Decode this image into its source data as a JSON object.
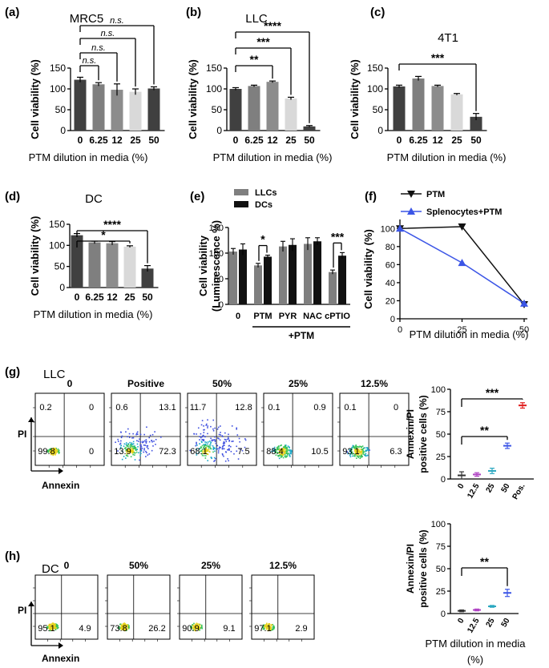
{
  "figure": {
    "colors": {
      "dark": "#404040",
      "mid": "#7f7f7f",
      "mid2": "#8c8c8c",
      "light": "#d9d9d9",
      "black": "#111111",
      "blue": "#3b55e6",
      "purple": "#b044c4",
      "teal": "#2aa7c0",
      "red": "#e01b1b"
    }
  },
  "chart_data": [
    {
      "id": "a",
      "panel_label": "(a)",
      "type": "bar",
      "title": "MRC5",
      "xlabel": "PTM dilution in media (%)",
      "ylabel": "Cell viability (%)",
      "categories": [
        "0",
        "6.25",
        "12",
        "25",
        "50"
      ],
      "values": [
        122,
        111,
        98,
        93,
        101
      ],
      "errors": [
        6,
        4,
        14,
        7,
        4
      ],
      "ylim": [
        0,
        150
      ],
      "yticks": [
        "0",
        "50",
        "100",
        "150"
      ],
      "significance": [
        {
          "from": 0,
          "to": 4,
          "label": "n.s."
        },
        {
          "from": 0,
          "to": 3,
          "label": "n.s."
        },
        {
          "from": 0,
          "to": 2,
          "label": "n.s."
        },
        {
          "from": 0,
          "to": 1,
          "label": "n.s."
        }
      ]
    },
    {
      "id": "b",
      "panel_label": "(b)",
      "type": "bar",
      "title": "LLC",
      "xlabel": "PTM dilution in media (%)",
      "ylabel": "Cell viability (%)",
      "categories": [
        "0",
        "6.25",
        "12",
        "25",
        "50"
      ],
      "values": [
        100,
        107,
        117,
        77,
        10
      ],
      "errors": [
        3,
        2,
        2,
        3,
        2
      ],
      "ylim": [
        0,
        150
      ],
      "yticks": [
        "0",
        "50",
        "100",
        "150"
      ],
      "significance": [
        {
          "from": 0,
          "to": 4,
          "label": "****"
        },
        {
          "from": 0,
          "to": 3,
          "label": "***"
        },
        {
          "from": 0,
          "to": 2,
          "label": "**"
        }
      ]
    },
    {
      "id": "c",
      "panel_label": "(c)",
      "type": "bar",
      "title": "4T1",
      "xlabel": "PTM dilution in media (%)",
      "ylabel": "Cell viability (%)",
      "categories": [
        "0",
        "6.25",
        "12",
        "25",
        "50"
      ],
      "values": [
        106,
        125,
        107,
        87,
        33
      ],
      "errors": [
        3,
        5,
        2,
        2,
        8
      ],
      "ylim": [
        0,
        150
      ],
      "yticks": [
        "0",
        "50",
        "100",
        "150"
      ],
      "significance": [
        {
          "from": 0,
          "to": 4,
          "label": "***"
        }
      ]
    },
    {
      "id": "d",
      "panel_label": "(d)",
      "type": "bar",
      "title": "DC",
      "xlabel": "PTM dilution in media (%)",
      "ylabel": "Cell viability (%)",
      "categories": [
        "0",
        "6.25",
        "12",
        "25",
        "50"
      ],
      "values": [
        124,
        107,
        105,
        97,
        45
      ],
      "errors": [
        4,
        3,
        4,
        2,
        7
      ],
      "ylim": [
        0,
        150
      ],
      "yticks": [
        "0",
        "50",
        "100",
        "150"
      ],
      "significance": [
        {
          "from": 0,
          "to": 4,
          "label": "****"
        },
        {
          "from": 0,
          "to": 3,
          "label": "*"
        }
      ]
    },
    {
      "id": "e",
      "panel_label": "(e)",
      "type": "bar",
      "ylabel_lines": [
        "Cell viability",
        "(Luminescence %)"
      ],
      "categories": [
        "0",
        "PTM",
        "PYR",
        "NAC",
        "cPTIO"
      ],
      "group_label": "+PTM",
      "series": [
        {
          "name": "LLCs",
          "values": [
            103,
            76,
            113,
            118,
            63
          ],
          "errors": [
            6,
            4,
            10,
            12,
            4
          ]
        },
        {
          "name": "DCs",
          "values": [
            107,
            93,
            116,
            123,
            95
          ],
          "errors": [
            11,
            3,
            12,
            7,
            6
          ]
        }
      ],
      "ylim": [
        0,
        150
      ],
      "yticks": [
        "0",
        "50",
        "100",
        "150"
      ],
      "significance": [
        {
          "category": 1,
          "label": "*"
        },
        {
          "category": 4,
          "label": "***"
        }
      ]
    },
    {
      "id": "f",
      "panel_label": "(f)",
      "type": "line",
      "xlabel": "PTM dilution in media (%)",
      "ylabel": "Cell viability (%)",
      "x": [
        0,
        25,
        50
      ],
      "xticks": [
        "0",
        "25",
        "50"
      ],
      "xlim": [
        0,
        50
      ],
      "ylim": [
        0,
        110
      ],
      "yticks": [
        "0",
        "20",
        "40",
        "60",
        "80",
        "100"
      ],
      "series": [
        {
          "name": "PTM",
          "marker": "triangle-down",
          "values": [
            100,
            102,
            16
          ]
        },
        {
          "name": "Splenocytes+PTM",
          "marker": "triangle-up",
          "values": [
            100,
            62,
            17
          ]
        }
      ]
    },
    {
      "id": "g",
      "panel_label": "(g)",
      "type": "scatter",
      "subtitle": "LLC",
      "flow_plots": [
        {
          "title": "0",
          "quadrants": [
            "0.2",
            "0",
            "99.8",
            "0"
          ],
          "spread": 0
        },
        {
          "title": "Positive",
          "quadrants": [
            "0.6",
            "13.1",
            "13.9",
            "72.3"
          ],
          "spread": 2
        },
        {
          "title": "50%",
          "quadrants": [
            "11.7",
            "12.8",
            "68.1",
            "7.5"
          ],
          "spread": 3
        },
        {
          "title": "25%",
          "quadrants": [
            "0.1",
            "0.9",
            "88.4",
            "10.5"
          ],
          "spread": 1
        },
        {
          "title": "12.5%",
          "quadrants": [
            "0.1",
            "0",
            "93.1",
            "6.3"
          ],
          "spread": 1
        }
      ],
      "axis_y": "PI",
      "axis_x": "Annexin",
      "summary": {
        "ylabel_lines": [
          "Annexin/PI",
          "positive cells (%)"
        ],
        "categories": [
          "0",
          "12.5",
          "25",
          "50",
          "Pos."
        ],
        "means": [
          4,
          5,
          9,
          37,
          82
        ],
        "errors": [
          4,
          2,
          3,
          3,
          3
        ],
        "ylim": [
          0,
          100
        ],
        "yticks": [
          "0",
          "25",
          "50",
          "75",
          "100"
        ],
        "significance": [
          {
            "from": 0,
            "to": 4,
            "label": "***"
          },
          {
            "from": 0,
            "to": 3,
            "label": "**"
          }
        ]
      }
    },
    {
      "id": "h",
      "panel_label": "(h)",
      "type": "scatter",
      "subtitle": "DC",
      "flow_plots": [
        {
          "title": "0",
          "quadrants": [
            "",
            "",
            "95.1",
            "4.9"
          ],
          "spread": 0
        },
        {
          "title": "50%",
          "quadrants": [
            "",
            "",
            "73.8",
            "26.2"
          ],
          "spread": 0
        },
        {
          "title": "25%",
          "quadrants": [
            "",
            "",
            "90.9",
            "9.1"
          ],
          "spread": 0
        },
        {
          "title": "12.5%",
          "quadrants": [
            "",
            "",
            "97.1",
            "2.9"
          ],
          "spread": 0
        }
      ],
      "axis_y": "PI",
      "axis_x": "Annexin",
      "summary": {
        "ylabel_lines": [
          "Annexin/PI",
          "positive cells (%)"
        ],
        "categories": [
          "0",
          "12.5",
          "25",
          "50"
        ],
        "means": [
          3,
          4,
          8,
          23
        ],
        "errors": [
          1,
          1,
          1,
          4
        ],
        "ylim": [
          0,
          100
        ],
        "yticks": [
          "0",
          "25",
          "50",
          "75",
          "100"
        ],
        "significance": [
          {
            "from": 0,
            "to": 3,
            "label": "**"
          }
        ],
        "xlabel_lines": [
          "PTM dilution in media",
          "(%)"
        ]
      }
    }
  ]
}
